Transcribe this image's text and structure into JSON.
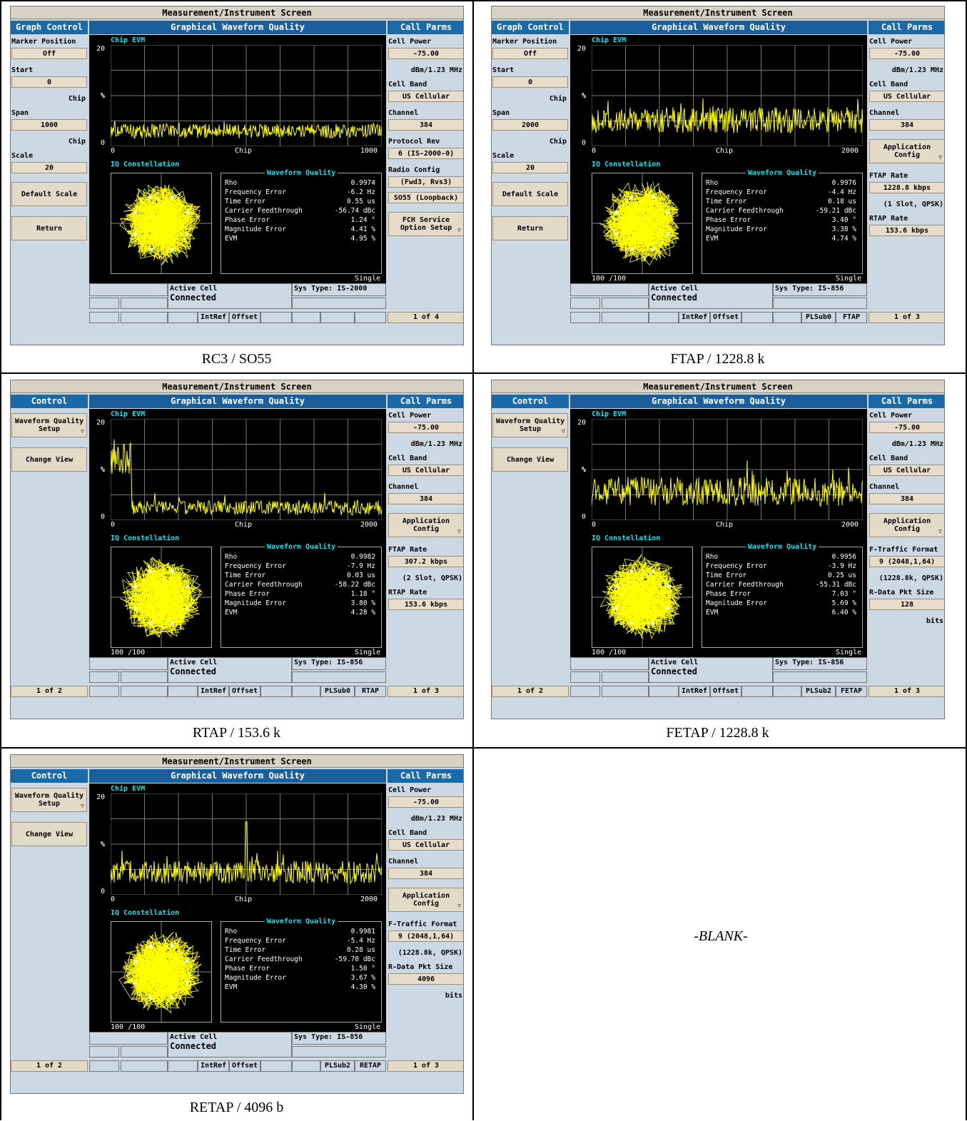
{
  "common": {
    "title": "Measurement/Instrument Screen",
    "center_header": "Graphical Waveform Quality",
    "right_header": "Call Parms",
    "chip_evm_label": "Chip EVM",
    "iq_label": "IQ Constellation",
    "wq_title": "Waveform Quality",
    "y_max": "20",
    "y_unit": "%",
    "y_min": "0",
    "x_label": "Chip",
    "single": "Single",
    "active_cell": "Active Cell",
    "connected": "Connected",
    "intref": "IntRef",
    "offset": "Offset",
    "wq_keys": [
      "Rho",
      "Frequency Error",
      "Time Error",
      "Carrier Feedthrough",
      "Phase Error",
      "Magnitude Error",
      "EVM"
    ]
  },
  "panels": [
    {
      "caption": "RC3 / SO55",
      "left_header": "Graph Control",
      "left": [
        {
          "kind": "label",
          "text": "Marker Position"
        },
        {
          "kind": "value",
          "text": "Off"
        },
        {
          "kind": "label",
          "text": "Start"
        },
        {
          "kind": "value",
          "text": "0"
        },
        {
          "kind": "label_right",
          "text": "Chip"
        },
        {
          "kind": "label",
          "text": "Span"
        },
        {
          "kind": "value",
          "text": "1000"
        },
        {
          "kind": "label_right",
          "text": "Chip"
        },
        {
          "kind": "label",
          "text": "Scale"
        },
        {
          "kind": "value",
          "text": "20"
        },
        {
          "kind": "button",
          "text": "Default Scale"
        },
        {
          "kind": "button",
          "text": "Return"
        }
      ],
      "right": [
        {
          "kind": "label",
          "text": "Cell Power"
        },
        {
          "kind": "value",
          "text": "-75.00"
        },
        {
          "kind": "label_right",
          "text": "dBm/1.23 MHz"
        },
        {
          "kind": "label",
          "text": "Cell Band"
        },
        {
          "kind": "value",
          "text": "US Cellular"
        },
        {
          "kind": "label",
          "text": "Channel"
        },
        {
          "kind": "value",
          "text": "384"
        },
        {
          "kind": "label",
          "text": "Protocol Rev"
        },
        {
          "kind": "value",
          "text": "6 (IS-2000-0)"
        },
        {
          "kind": "label",
          "text": "Radio Config"
        },
        {
          "kind": "value",
          "text": "(Fwd3, Rvs3)"
        },
        {
          "kind": "value",
          "text": "SO55 (Loopback)"
        },
        {
          "kind": "button",
          "text": "FCH Service Option Setup"
        }
      ],
      "x_max": "1000",
      "iq_scale": "",
      "wq_values": [
        "0.9974",
        "-6.2 Hz",
        "0.55 us",
        "-56.74 dBc",
        "1.24 °",
        "4.41 %",
        "4.95 %"
      ],
      "sys_type": "Sys Type: IS-2000",
      "tag1": "",
      "tag2": "",
      "left_pager": "",
      "right_pager": "1 of 4"
    },
    {
      "caption": "FTAP / 1228.8 k",
      "left_header": "Graph Control",
      "left": [
        {
          "kind": "label",
          "text": "Marker Position"
        },
        {
          "kind": "value",
          "text": "Off"
        },
        {
          "kind": "label",
          "text": "Start"
        },
        {
          "kind": "value",
          "text": "0"
        },
        {
          "kind": "label_right",
          "text": "Chip"
        },
        {
          "kind": "label",
          "text": "Span"
        },
        {
          "kind": "value",
          "text": "2000"
        },
        {
          "kind": "label_right",
          "text": "Chip"
        },
        {
          "kind": "label",
          "text": "Scale"
        },
        {
          "kind": "value",
          "text": "20"
        },
        {
          "kind": "button",
          "text": "Default Scale"
        },
        {
          "kind": "button",
          "text": "Return"
        }
      ],
      "right": [
        {
          "kind": "label",
          "text": "Cell Power"
        },
        {
          "kind": "value",
          "text": "-75.00"
        },
        {
          "kind": "label_right",
          "text": "dBm/1.23 MHz"
        },
        {
          "kind": "label",
          "text": "Cell Band"
        },
        {
          "kind": "value",
          "text": "US Cellular"
        },
        {
          "kind": "label",
          "text": "Channel"
        },
        {
          "kind": "value",
          "text": "384"
        },
        {
          "kind": "button",
          "text": "Application Config"
        },
        {
          "kind": "label",
          "text": "FTAP Rate"
        },
        {
          "kind": "value",
          "text": "1228.8 kbps"
        },
        {
          "kind": "label_right",
          "text": "(1 Slot, QPSK)"
        },
        {
          "kind": "label",
          "text": "RTAP Rate"
        },
        {
          "kind": "value",
          "text": "153.6 kbps"
        }
      ],
      "x_max": "2000",
      "iq_scale": "100 /100",
      "wq_values": [
        "0.9976",
        "-4.4 Hz",
        "0.18 us",
        "-59.21 dBc",
        "3.40 °",
        "3.38 %",
        "4.74 %"
      ],
      "sys_type": "Sys Type: IS-856",
      "tag1": "PLSub0",
      "tag2": "FTAP",
      "left_pager": "",
      "right_pager": "1 of 3"
    },
    {
      "caption": "RTAP / 153.6 k",
      "left_header": "Control",
      "left": [
        {
          "kind": "button",
          "text": "Waveform Quality Setup"
        },
        {
          "kind": "button",
          "text": "Change View"
        }
      ],
      "right": [
        {
          "kind": "label",
          "text": "Cell Power"
        },
        {
          "kind": "value",
          "text": "-75.00"
        },
        {
          "kind": "label_right",
          "text": "dBm/1.23 MHz"
        },
        {
          "kind": "label",
          "text": "Cell Band"
        },
        {
          "kind": "value",
          "text": "US Cellular"
        },
        {
          "kind": "label",
          "text": "Channel"
        },
        {
          "kind": "value",
          "text": "384"
        },
        {
          "kind": "button",
          "text": "Application Config"
        },
        {
          "kind": "label",
          "text": "FTAP Rate"
        },
        {
          "kind": "value",
          "text": "307.2 kbps"
        },
        {
          "kind": "label_right",
          "text": "(2 Slot, QPSK)"
        },
        {
          "kind": "label",
          "text": "RTAP Rate"
        },
        {
          "kind": "value",
          "text": "153.6 kbps"
        }
      ],
      "x_max": "2000",
      "iq_scale": "100 /100",
      "wq_values": [
        "0.9982",
        "-7.9 Hz",
        "0.03 us",
        "-58.22 dBc",
        "1.18 °",
        "3.80 %",
        "4.28 %"
      ],
      "sys_type": "Sys Type: IS-856",
      "tag1": "PLSub0",
      "tag2": "RTAP",
      "left_pager": "1 of 2",
      "right_pager": "1 of 3"
    },
    {
      "caption": "FETAP / 1228.8 k",
      "left_header": "Control",
      "left": [
        {
          "kind": "button",
          "text": "Waveform Quality Setup"
        },
        {
          "kind": "button",
          "text": "Change View"
        }
      ],
      "right": [
        {
          "kind": "label",
          "text": "Cell Power"
        },
        {
          "kind": "value",
          "text": "-75.00"
        },
        {
          "kind": "label_right",
          "text": "dBm/1.23 MHz"
        },
        {
          "kind": "label",
          "text": "Cell Band"
        },
        {
          "kind": "value",
          "text": "US Cellular"
        },
        {
          "kind": "label",
          "text": "Channel"
        },
        {
          "kind": "value",
          "text": "384"
        },
        {
          "kind": "button",
          "text": "Application Config"
        },
        {
          "kind": "label",
          "text": "F-Traffic Format"
        },
        {
          "kind": "value",
          "text": "9 (2048,1,64)"
        },
        {
          "kind": "label_right",
          "text": "(1228.8k, QPSK)"
        },
        {
          "kind": "label",
          "text": "R-Data Pkt Size"
        },
        {
          "kind": "value",
          "text": "128"
        },
        {
          "kind": "label_right",
          "text": "bits"
        }
      ],
      "x_max": "2000",
      "iq_scale": "100 /100",
      "wq_values": [
        "0.9956",
        "-3.9 Hz",
        "0.25 us",
        "-55.31 dBc",
        "7.03 °",
        "5.69 %",
        "6.40 %"
      ],
      "sys_type": "Sys Type: IS-856",
      "tag1": "PLSub2",
      "tag2": "FETAP",
      "left_pager": "1 of 2",
      "right_pager": "1 of 3"
    },
    {
      "caption": "RETAP / 4096 b",
      "left_header": "Control",
      "left": [
        {
          "kind": "button",
          "text": "Waveform Quality Setup"
        },
        {
          "kind": "button",
          "text": "Change View"
        }
      ],
      "right": [
        {
          "kind": "label",
          "text": "Cell Power"
        },
        {
          "kind": "value",
          "text": "-75.00"
        },
        {
          "kind": "label_right",
          "text": "dBm/1.23 MHz"
        },
        {
          "kind": "label",
          "text": "Cell Band"
        },
        {
          "kind": "value",
          "text": "US Cellular"
        },
        {
          "kind": "label",
          "text": "Channel"
        },
        {
          "kind": "value",
          "text": "384"
        },
        {
          "kind": "button",
          "text": "Application Config"
        },
        {
          "kind": "label",
          "text": "F-Traffic Format"
        },
        {
          "kind": "value",
          "text": "9 (2048,1,64)"
        },
        {
          "kind": "label_right",
          "text": "(1228.8k, QPSK)"
        },
        {
          "kind": "label",
          "text": "R-Data Pkt Size"
        },
        {
          "kind": "value",
          "text": "4096"
        },
        {
          "kind": "label_right",
          "text": "bits"
        }
      ],
      "x_max": "2000",
      "iq_scale": "100 /100",
      "wq_values": [
        "0.9981",
        "-5.4 Hz",
        "0.28 us",
        "-59.70 dBc",
        "1.50 °",
        "3.67 %",
        "4.30 %"
      ],
      "sys_type": "Sys Type: IS-856",
      "tag1": "PLSub2",
      "tag2": "RETAP",
      "left_pager": "1 of 2",
      "right_pager": "1 of 3"
    }
  ],
  "blank_text": "-BLANK-",
  "colors": {
    "screen_bg": "#ccd9e4",
    "header_blue": "#1a6aa9",
    "trace_yellow": "#ffff00",
    "label_cyan": "#16e0ea",
    "softkey_tan": "#e3dac7"
  }
}
